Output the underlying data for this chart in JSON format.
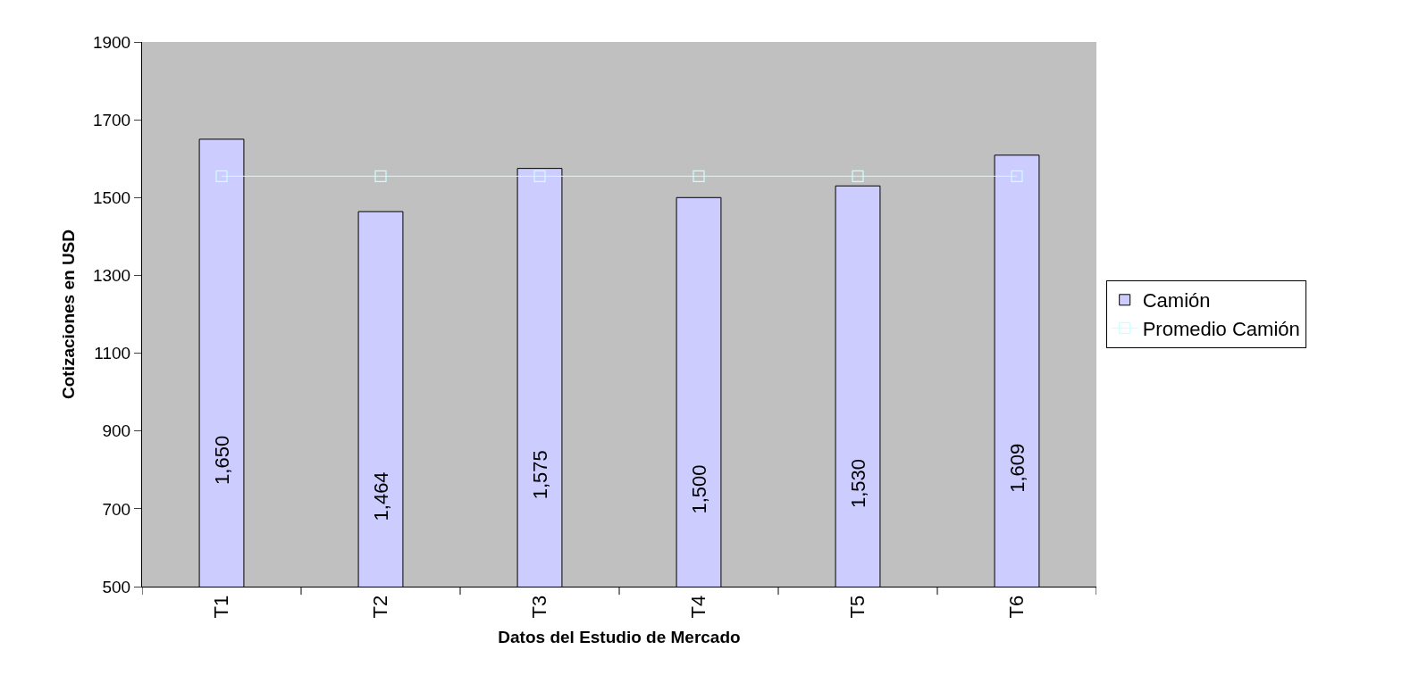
{
  "chart_data": {
    "type": "bar",
    "xlabel": "Datos del Estudio de Mercado",
    "ylabel": "Cotizaciones en USD",
    "categories": [
      "T1",
      "T2",
      "T3",
      "T4",
      "T5",
      "T6"
    ],
    "series": [
      {
        "name": "Camión",
        "color": "#ccccff",
        "values": [
          1650,
          1464,
          1575,
          1500,
          1530,
          1609
        ],
        "value_labels": [
          "1,650",
          "1,464",
          "1,575",
          "1,500",
          "1,530",
          "1,609"
        ]
      },
      {
        "name": "Promedio Camión",
        "type": "line",
        "color": "#ccffff",
        "marker": "square",
        "values": [
          1555,
          1555,
          1555,
          1555,
          1555,
          1555
        ]
      }
    ],
    "ylim": [
      500,
      1900
    ],
    "yticks": [
      500,
      700,
      900,
      1100,
      1300,
      1500,
      1700,
      1900
    ],
    "grid": false,
    "legend": "right"
  }
}
